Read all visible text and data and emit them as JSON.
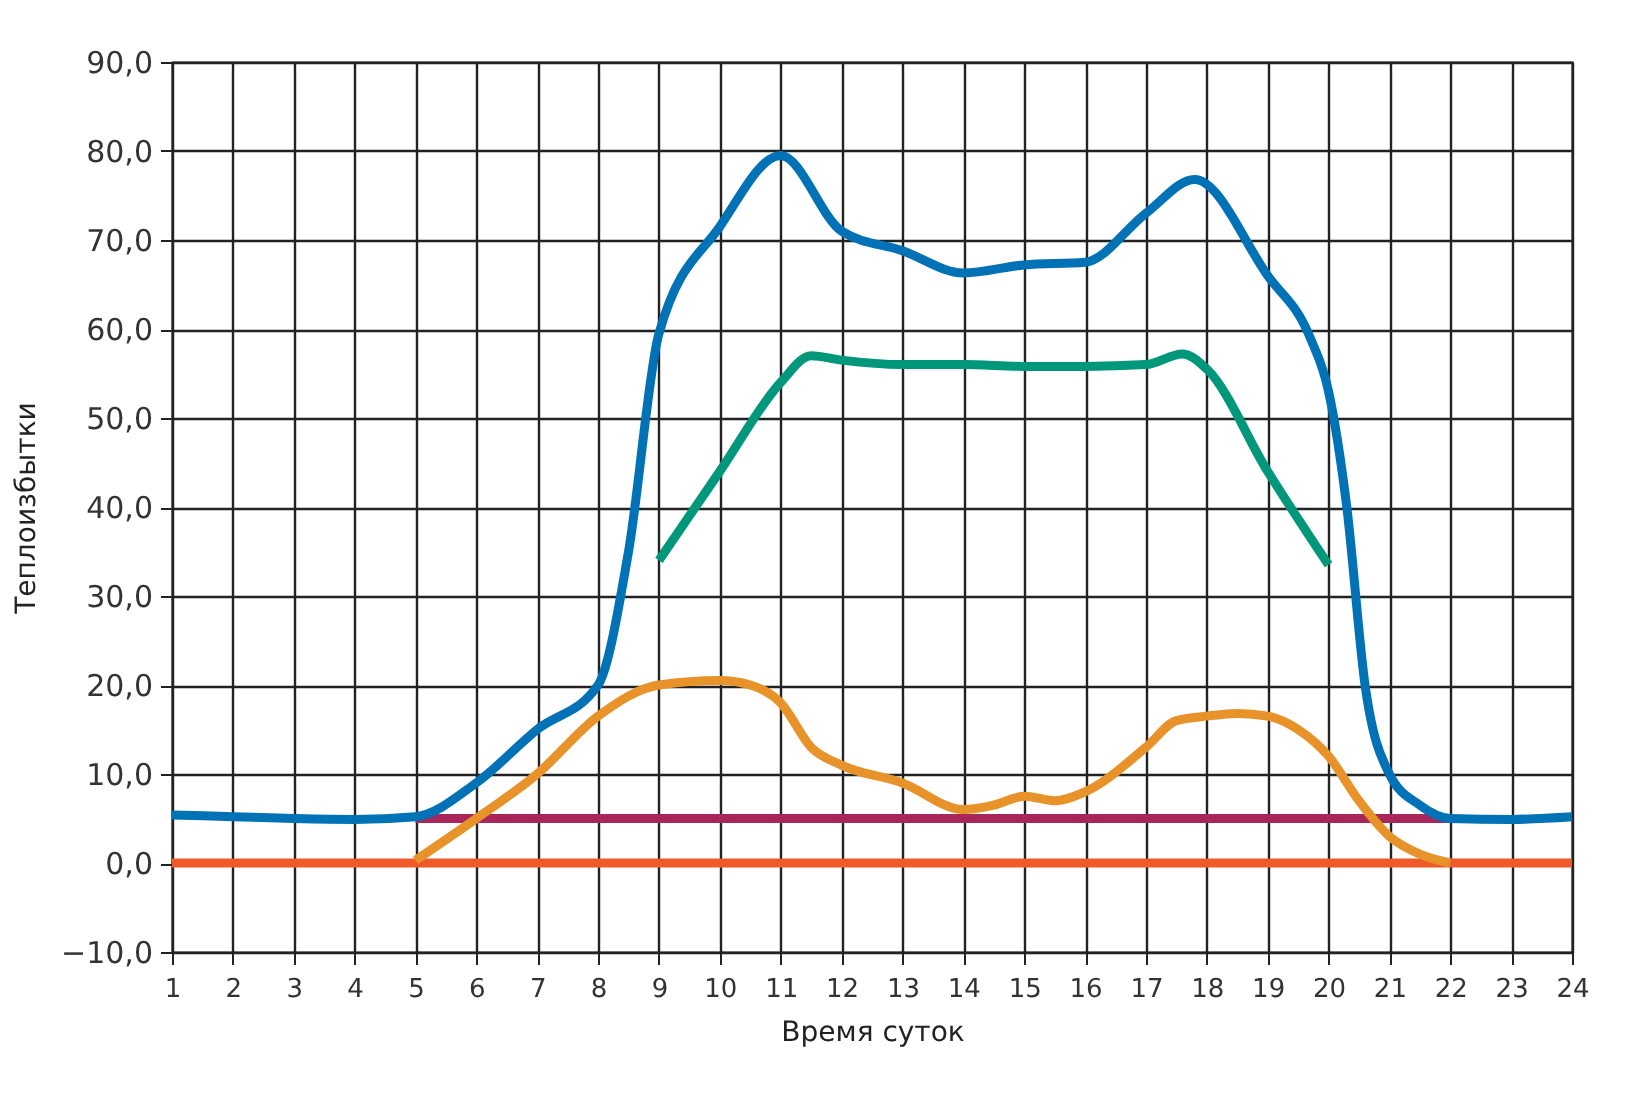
{
  "chart_data": {
    "type": "line",
    "xlabel": "Время суток",
    "ylabel": "Теплоизбытки",
    "xlim": [
      1,
      24
    ],
    "xticks": [
      1,
      2,
      3,
      4,
      5,
      6,
      7,
      8,
      9,
      10,
      11,
      12,
      13,
      14,
      15,
      16,
      17,
      18,
      19,
      20,
      21,
      22,
      23,
      24
    ],
    "ylim": [
      -10,
      90
    ],
    "yticks": [
      {
        "value": -10,
        "label": "−10,0"
      },
      {
        "value": 0,
        "label": "0,0"
      },
      {
        "value": 10,
        "label": "10,0"
      },
      {
        "value": 20,
        "label": "20,0"
      },
      {
        "value": 30,
        "label": "30,0"
      },
      {
        "value": 40,
        "label": "40,0"
      },
      {
        "value": 50,
        "label": "50,0"
      },
      {
        "value": 60,
        "label": "60,0"
      },
      {
        "value": 70,
        "label": "70,0"
      },
      {
        "value": 80,
        "label": "80,0"
      },
      {
        "value": 90,
        "label": "90,0"
      }
    ],
    "grid": true,
    "line_style": "solid",
    "marker": "none",
    "series": [
      {
        "color": "#f05a28",
        "x": [
          1,
          24
        ],
        "values": [
          0,
          0
        ]
      },
      {
        "color": "#a8265a",
        "x": [
          5,
          22
        ],
        "values": [
          5,
          5
        ]
      },
      {
        "color": "#0072b5",
        "x": [
          1,
          2,
          3,
          4,
          5,
          6,
          7,
          8,
          8.5,
          9,
          10,
          11,
          12,
          13,
          14,
          15,
          16,
          17,
          17.8,
          19,
          19.7,
          20,
          20.3,
          20.6,
          21,
          21.5,
          22,
          23,
          24
        ],
        "values": [
          5.4,
          5.2,
          5,
          4.9,
          5.2,
          9,
          15,
          20,
          35,
          59.5,
          71.5,
          79.5,
          71,
          68.8,
          66.3,
          67.2,
          67.5,
          73,
          76.8,
          66,
          59,
          53,
          40,
          20,
          10,
          6.5,
          5,
          4.9,
          5.2
        ]
      },
      {
        "color": "#00977a",
        "x": [
          9,
          10,
          11,
          11.5,
          12,
          13,
          14,
          15,
          16,
          17,
          17.6,
          18,
          19,
          20
        ],
        "values": [
          34,
          44,
          54,
          57,
          56.5,
          56,
          56,
          55.8,
          55.8,
          56,
          57.2,
          55.5,
          44,
          33.5
        ]
      },
      {
        "color": "#e8922a",
        "x": [
          5,
          6,
          7,
          8,
          9,
          10,
          10.5,
          11,
          11.5,
          12,
          13,
          14,
          14.5,
          15,
          15.5,
          16,
          17,
          17.5,
          18,
          18.5,
          19,
          19.5,
          20,
          20.5,
          21,
          21.5,
          22
        ],
        "values": [
          0.3,
          5,
          10,
          16.5,
          20,
          20.5,
          20,
          18,
          13,
          11,
          9,
          6,
          6.5,
          7.5,
          7,
          8,
          13,
          16,
          16.5,
          16.8,
          16.5,
          15,
          12,
          7,
          3,
          1,
          0
        ]
      }
    ]
  }
}
